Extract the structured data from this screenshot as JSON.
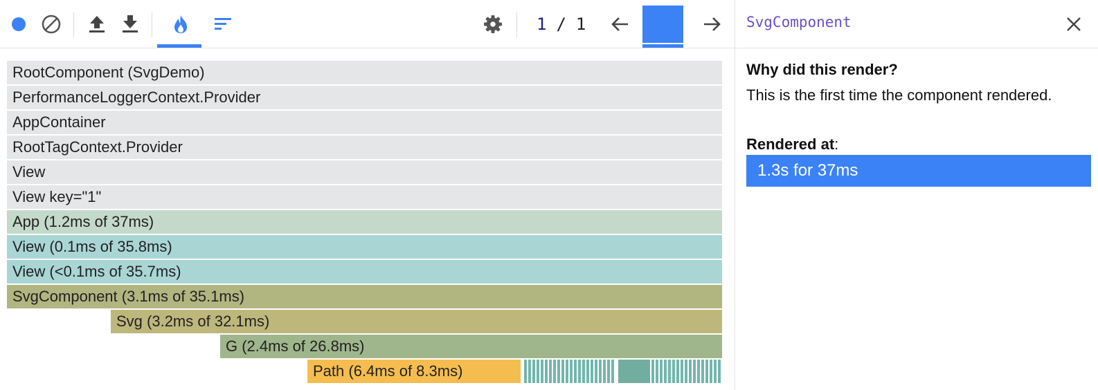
{
  "toolbar": {
    "icons": [
      "record-icon",
      "clear-icon",
      "upload-icon",
      "download-icon",
      "flamegraph-icon",
      "ranked-icon",
      "gear-icon",
      "arrow-left-icon",
      "arrow-right-icon"
    ],
    "accent_color": "#3b82f6"
  },
  "commit": {
    "current": "1",
    "separator": "/",
    "total": "1"
  },
  "flamegraph": {
    "rows": [
      {
        "label": "RootComponent (SvgDemo)",
        "color": "#e5e6e8"
      },
      {
        "label": "PerformanceLoggerContext.Provider",
        "color": "#e5e6e8"
      },
      {
        "label": "AppContainer",
        "color": "#e5e6e8"
      },
      {
        "label": "RootTagContext.Provider",
        "color": "#e5e6e8"
      },
      {
        "label": "View",
        "color": "#e5e6e8"
      },
      {
        "label": "View key=\"1\"",
        "color": "#e5e6e8"
      },
      {
        "label": "App (1.2ms of 37ms)",
        "color": "#c4d9ca"
      },
      {
        "label": "View (0.1ms of 35.8ms)",
        "color": "#a9d5d5"
      },
      {
        "label": "View (<0.1ms of 35.7ms)",
        "color": "#a9d5d5"
      },
      {
        "label": "SvgComponent (3.1ms of 35.1ms)",
        "color": "#b1b580"
      },
      {
        "label": "Svg (3.2ms of 32.1ms)",
        "color": "#beb77c"
      },
      {
        "label": "G (2.4ms of 26.8ms)",
        "color": "#9fb68c"
      },
      {
        "label": "Path (6.4ms of 8.3ms)",
        "color": "#f5bd4f"
      }
    ]
  },
  "sidebar": {
    "component_name": "SvgComponent",
    "why_heading": "Why did this render?",
    "why_text": "This is the first time the component rendered.",
    "rendered_at_label": "Rendered at",
    "rendered_at_colon": ":",
    "render_entry": "1.3s for 37ms"
  }
}
